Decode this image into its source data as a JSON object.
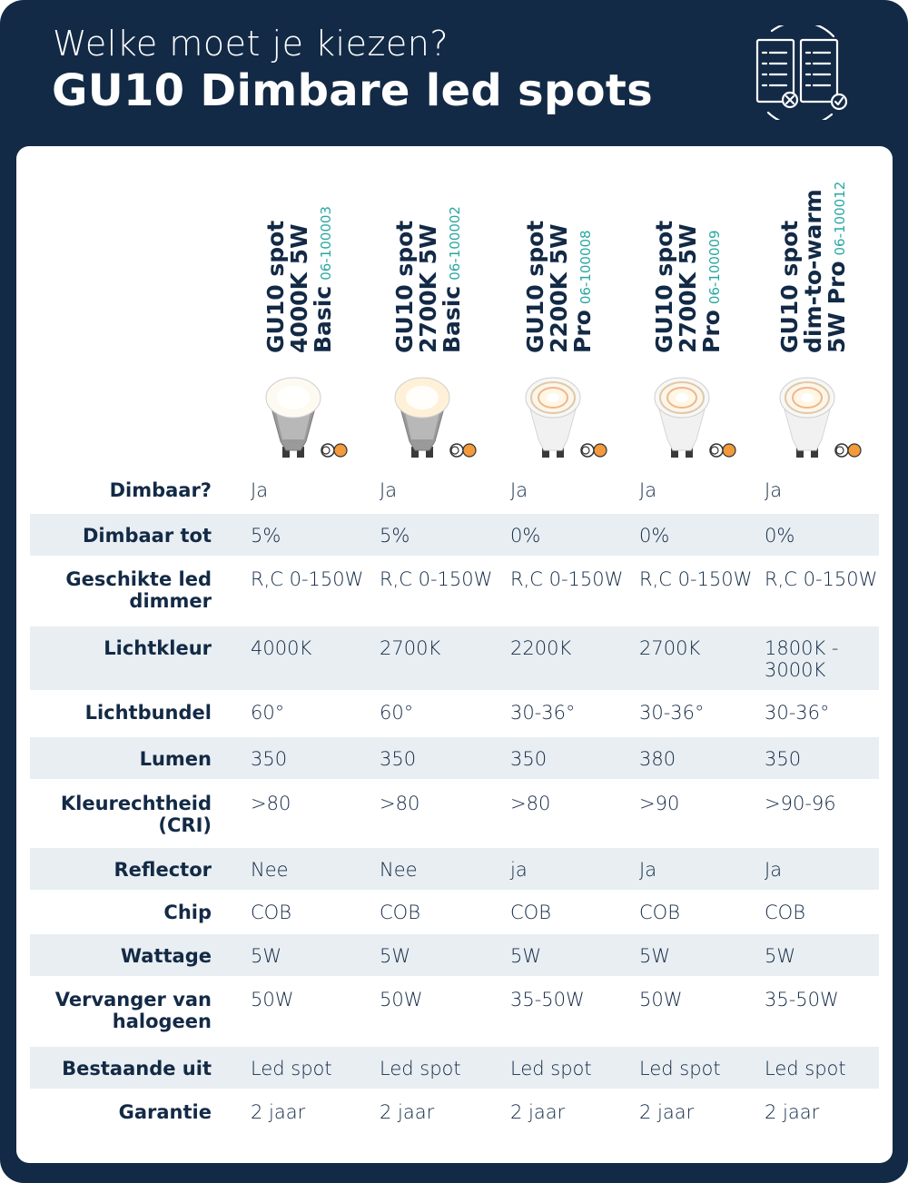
{
  "header": {
    "subtitle": "Welke moet je kiezen?",
    "title": "GU10 Dimbare led spots",
    "icon": "compare-checklists-icon"
  },
  "colors": {
    "navy": "#132a46",
    "teal": "#2aa7a1",
    "row_shade": "#e8eef2"
  },
  "products": [
    {
      "lines": [
        "GU10 spot",
        "4000K 5W",
        "Basic"
      ],
      "code": "06-100003",
      "bulb": "basic-cool"
    },
    {
      "lines": [
        "GU10 spot",
        "2700K 5W",
        "Basic"
      ],
      "code": "06-100002",
      "bulb": "basic-warm"
    },
    {
      "lines": [
        "GU10 spot",
        "2200K 5W",
        "Pro"
      ],
      "code": "06-100008",
      "bulb": "pro"
    },
    {
      "lines": [
        "GU10 spot",
        "2700K 5W",
        "Pro"
      ],
      "code": "06-100009",
      "bulb": "pro"
    },
    {
      "lines": [
        "GU10 spot",
        "dim-to-warm",
        "5W Pro"
      ],
      "code": "06-100012",
      "bulb": "pro"
    }
  ],
  "rows": [
    {
      "label": "Dimbaar?",
      "values": [
        "Ja",
        "Ja",
        "Ja",
        "Ja",
        "Ja"
      ]
    },
    {
      "label": "Dimbaar tot",
      "values": [
        "5%",
        "5%",
        "0%",
        "0%",
        "0%"
      ]
    },
    {
      "label": "Geschikte led dimmer",
      "values": [
        "R,C 0-150W",
        "R,C 0-150W",
        "R,C 0-150W",
        "R,C 0-150W",
        "R,C 0-150W"
      ]
    },
    {
      "label": "Lichtkleur",
      "values": [
        "4000K",
        "2700K",
        "2200K",
        "2700K",
        "1800K - 3000K"
      ]
    },
    {
      "label": "Lichtbundel",
      "values": [
        "60°",
        "60°",
        "30-36°",
        "30-36°",
        "30-36°"
      ]
    },
    {
      "label": "Lumen",
      "values": [
        "350",
        "350",
        "350",
        "380",
        "350"
      ]
    },
    {
      "label": "Kleurechtheid (CRI)",
      "values": [
        ">80",
        ">80",
        ">80",
        ">90",
        ">90-96"
      ]
    },
    {
      "label": "Reflector",
      "values": [
        "Nee",
        "Nee",
        "ja",
        "Ja",
        "Ja"
      ]
    },
    {
      "label": "Chip",
      "values": [
        "COB",
        "COB",
        "COB",
        "COB",
        "COB"
      ]
    },
    {
      "label": "Wattage",
      "values": [
        "5W",
        "5W",
        "5W",
        "5W",
        "5W"
      ]
    },
    {
      "label": "Vervanger van halogeen",
      "values": [
        "50W",
        "50W",
        "35-50W",
        "50W",
        "35-50W"
      ]
    },
    {
      "label": "Bestaande uit",
      "values": [
        "Led spot",
        "Led spot",
        "Led spot",
        "Led spot",
        "Led spot"
      ]
    },
    {
      "label": "Garantie",
      "values": [
        "2 jaar",
        "2 jaar",
        "2 jaar",
        "2 jaar",
        "2 jaar"
      ]
    }
  ]
}
